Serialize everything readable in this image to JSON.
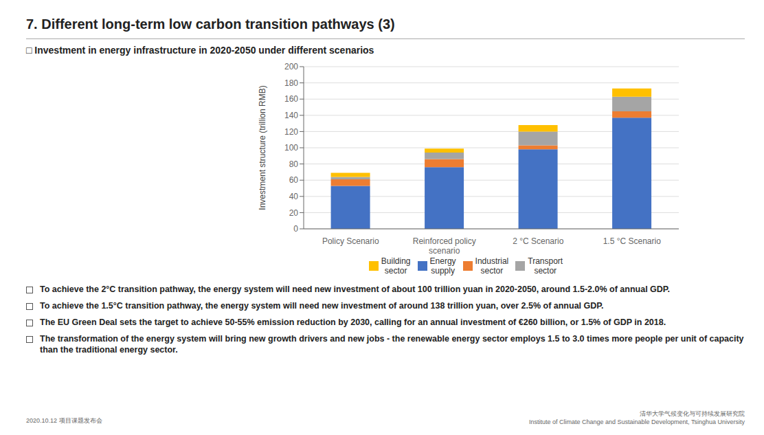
{
  "chart_data": {
    "type": "bar",
    "stacked": true,
    "title": "7. Different long-term low carbon transition pathways (3)",
    "subtitle": "□ Investment in energy infrastructure in 2020-2050 under different scenarios",
    "categories": [
      "Policy Scenario",
      "Reinforced policy\nscenario",
      "2 °C Scenario",
      "1.5 °C Scenario"
    ],
    "series": [
      {
        "name": "Energy\nsupply",
        "color": "#4472C4",
        "values": [
          53,
          76,
          98,
          137
        ]
      },
      {
        "name": "Industrial\nsector",
        "color": "#ED7D31",
        "values": [
          8,
          10,
          5,
          8
        ]
      },
      {
        "name": "Transport\nsector",
        "color": "#A5A5A5",
        "values": [
          3,
          8,
          17,
          18
        ]
      },
      {
        "name": "Building\nsector",
        "color": "#FFC000",
        "values": [
          5,
          5,
          8,
          10
        ]
      }
    ],
    "ylabel": "Investment structure (trillion RMB)",
    "ylim": [
      0,
      200
    ],
    "yticks": [
      0,
      20,
      40,
      60,
      80,
      100,
      120,
      140,
      160,
      180,
      200
    ],
    "grid": true,
    "legend": "bottom",
    "annotations": [
      {
        "kind": "bullet",
        "text": "To achieve the 2°C transition pathway, the energy system will need new investment of about 100 trillion yuan in 2020-2050, around 1.5-2.0% of annual GDP."
      },
      {
        "kind": "bullet",
        "text": "To achieve the 1.5°C transition pathway, the energy system will need new investment of around 138 trillion yuan, over 2.5% of annual GDP."
      },
      {
        "kind": "bullet",
        "text": "The EU Green Deal sets the target to achieve 50-55% emission reduction by 2030, calling for an annual investment of €260 billion, or 1.5% of GDP in 2018."
      },
      {
        "kind": "bullet",
        "text": "The transformation of the energy system will bring new growth drivers and new jobs - the renewable energy sector employs 1.5 to 3.0 times more people per unit of capacity than the traditional energy sector."
      },
      {
        "kind": "footer",
        "text": "2020.10.12  项目课题发布会"
      },
      {
        "kind": "footer",
        "text": "清华大学气候变化与可持续发展研究院\nInstitute of Climate Change and Sustainable Development, Tsinghua University"
      }
    ]
  }
}
